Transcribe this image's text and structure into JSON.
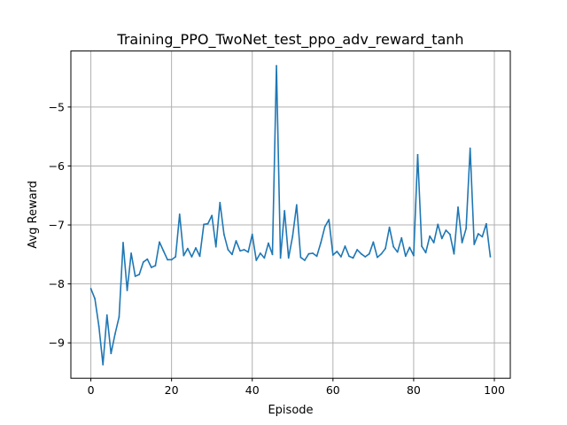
{
  "chart_data": {
    "type": "line",
    "title": "Training_PPO_TwoNet_test_ppo_adv_reward_tanh",
    "xlabel": "Episode",
    "ylabel": "Avg Reward",
    "xlim": [
      -4.95,
      103.95
    ],
    "ylim": [
      -9.6,
      -4.05
    ],
    "xticks": [
      0,
      20,
      40,
      60,
      80,
      100
    ],
    "yticks": [
      -9,
      -8,
      -7,
      -6,
      -5
    ],
    "xtick_labels": [
      "0",
      "20",
      "40",
      "60",
      "80",
      "100"
    ],
    "ytick_labels": [
      "−9",
      "−8",
      "−7",
      "−6",
      "−5"
    ],
    "grid": true,
    "series": [
      {
        "color": "#1f77b4",
        "x": [
          0,
          1,
          2,
          3,
          4,
          5,
          6,
          7,
          8,
          9,
          10,
          11,
          12,
          13,
          14,
          15,
          16,
          17,
          18,
          19,
          20,
          21,
          22,
          23,
          24,
          25,
          26,
          27,
          28,
          29,
          30,
          31,
          32,
          33,
          34,
          35,
          36,
          37,
          38,
          39,
          40,
          41,
          42,
          43,
          44,
          45,
          46,
          47,
          48,
          49,
          50,
          51,
          52,
          53,
          54,
          55,
          56,
          57,
          58,
          59,
          60,
          61,
          62,
          63,
          64,
          65,
          66,
          67,
          68,
          69,
          70,
          71,
          72,
          73,
          74,
          75,
          76,
          77,
          78,
          79,
          80,
          81,
          82,
          83,
          84,
          85,
          86,
          87,
          88,
          89,
          90,
          91,
          92,
          93,
          94,
          95,
          96,
          97,
          98,
          99
        ],
        "y": [
          -8.08,
          -8.25,
          -8.72,
          -9.37,
          -8.53,
          -9.18,
          -8.85,
          -8.56,
          -7.3,
          -8.11,
          -7.48,
          -7.87,
          -7.84,
          -7.63,
          -7.58,
          -7.72,
          -7.69,
          -7.29,
          -7.44,
          -7.59,
          -7.59,
          -7.54,
          -6.82,
          -7.52,
          -7.4,
          -7.54,
          -7.39,
          -7.53,
          -6.99,
          -6.98,
          -6.84,
          -7.37,
          -6.62,
          -7.16,
          -7.42,
          -7.5,
          -7.27,
          -7.44,
          -7.42,
          -7.46,
          -7.16,
          -7.6,
          -7.48,
          -7.56,
          -7.31,
          -7.5,
          -4.3,
          -7.56,
          -6.76,
          -7.56,
          -7.19,
          -6.66,
          -7.55,
          -7.6,
          -7.49,
          -7.48,
          -7.53,
          -7.3,
          -7.03,
          -6.91,
          -7.51,
          -7.45,
          -7.54,
          -7.36,
          -7.53,
          -7.56,
          -7.42,
          -7.49,
          -7.54,
          -7.49,
          -7.29,
          -7.55,
          -7.49,
          -7.4,
          -7.04,
          -7.37,
          -7.46,
          -7.22,
          -7.53,
          -7.38,
          -7.52,
          -5.81,
          -7.36,
          -7.47,
          -7.19,
          -7.3,
          -6.99,
          -7.23,
          -7.09,
          -7.16,
          -7.49,
          -6.7,
          -7.3,
          -7.06,
          -5.7,
          -7.33,
          -7.15,
          -7.2,
          -6.98,
          -7.54
        ]
      }
    ]
  }
}
